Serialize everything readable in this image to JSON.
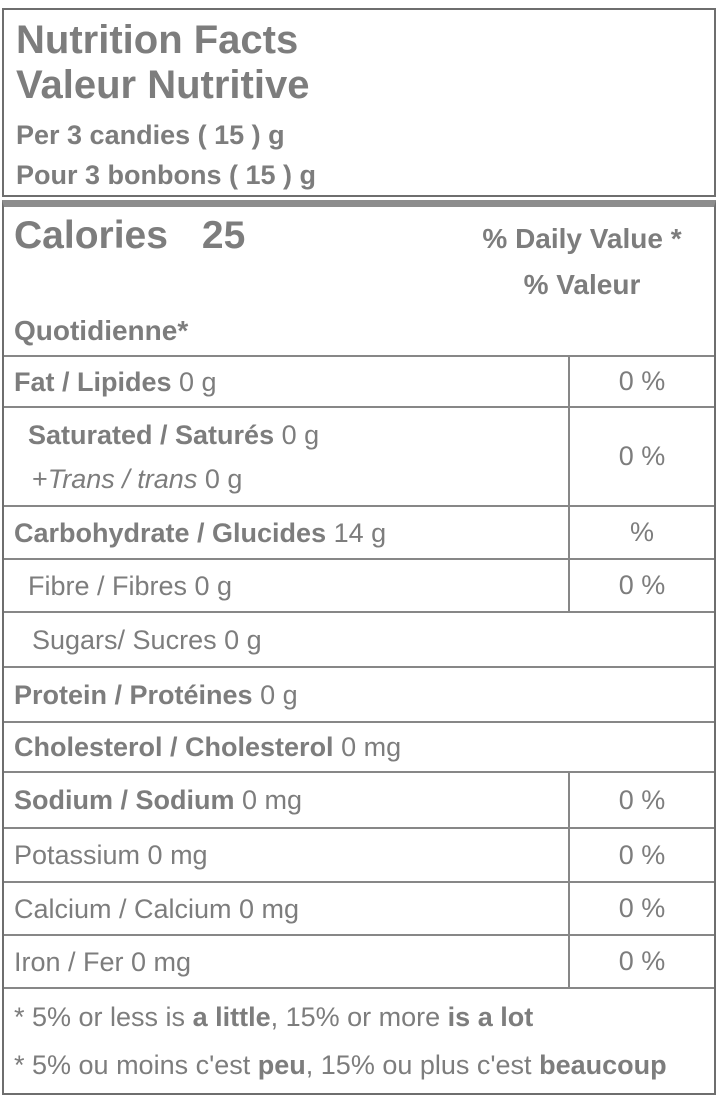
{
  "colors": {
    "text": "#7d7d7d",
    "border_outer": "#6e6e6e",
    "border_inner": "#878787",
    "thick_bar": "#8d8d8d",
    "background": "#ffffff"
  },
  "header": {
    "title_en": "Nutrition Facts",
    "title_fr": "Valeur Nutritive",
    "serving_en": "Per 3 candies ( 15 ) g",
    "serving_fr": "Pour 3 bonbons ( 15 ) g"
  },
  "calories": {
    "label": "Calories",
    "value": "25",
    "dv_header_en": "% Daily Value *",
    "dv_header_fr_line1": "% Valeur",
    "dv_header_fr_line2": "Quotidienne*"
  },
  "nutrients": [
    {
      "name": "fat",
      "bold": "Fat / Lipides",
      "rest": " 0 g",
      "dv": "0 %"
    },
    {
      "name": "saturated",
      "bold": "Saturated / Saturés",
      "rest": " 0 g",
      "line2_prefix": "+",
      "line2_italic": "Trans / trans",
      "line2_rest": " 0 g",
      "dv": "0 %"
    },
    {
      "name": "carbohydrate",
      "bold": "Carbohydrate / Glucides",
      "rest": " 14 g",
      "dv": "%"
    },
    {
      "name": "fibre",
      "text": "Fibre / Fibres 0 g",
      "dv": "0 %"
    },
    {
      "name": "sugars",
      "text": "Sugars/ Sucres 0 g"
    },
    {
      "name": "protein",
      "bold": "Protein / Protéines",
      "rest": " 0 g"
    },
    {
      "name": "cholesterol",
      "bold": "Cholesterol / Cholesterol",
      "rest": " 0 mg"
    },
    {
      "name": "sodium",
      "bold": "Sodium / Sodium",
      "rest": " 0 mg",
      "dv": "0 %"
    },
    {
      "name": "potassium",
      "text": "Potassium 0 mg",
      "dv": "0 %"
    },
    {
      "name": "calcium",
      "text": "Calcium / Calcium 0 mg",
      "dv": "0 %"
    },
    {
      "name": "iron",
      "text": "Iron / Fer 0 mg",
      "dv": "0 %"
    }
  ],
  "footnotes": {
    "en": {
      "p1": "* 5% or less is ",
      "b1": "a little",
      "p2": ", 15% or more ",
      "b2": "is a lot"
    },
    "fr": {
      "p1": "* 5% ou moins c'est ",
      "b1": "peu",
      "p2": ", 15% ou plus c'est ",
      "b2": "beaucoup"
    }
  }
}
